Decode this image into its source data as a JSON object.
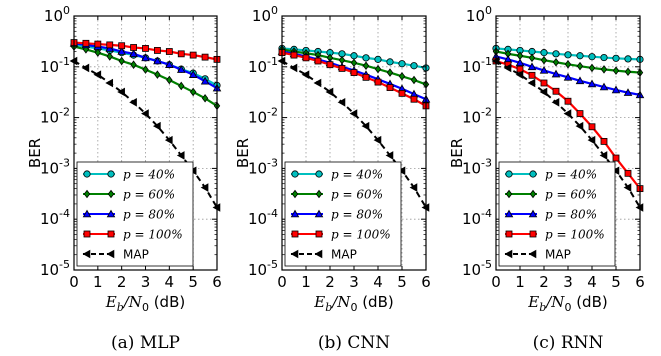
{
  "chart_data": [
    {
      "type": "line",
      "title": "",
      "caption": "(a)  MLP",
      "xlabel": {
        "main": "E",
        "sub1": "b",
        "slash": "/N",
        "sub2": "0",
        "unit": " (dB)"
      },
      "ylabel": "BER",
      "xlim": [
        0,
        6
      ],
      "ylim": [
        1e-05,
        1
      ],
      "yscale": "log",
      "grid": true,
      "legend_position": "lower-left",
      "x_ticks": [
        "0",
        "1",
        "2",
        "3",
        "4",
        "5",
        "6"
      ],
      "y_ticks": [
        {
          "base": "10",
          "exp": "0"
        },
        {
          "base": "10",
          "exp": "-1"
        },
        {
          "base": "10",
          "exp": "-2"
        },
        {
          "base": "10",
          "exp": "-3"
        },
        {
          "base": "10",
          "exp": "-4"
        },
        {
          "base": "10",
          "exp": "-5"
        }
      ],
      "x": [
        0,
        0.5,
        1,
        1.5,
        2,
        2.5,
        3,
        3.5,
        4,
        4.5,
        5,
        5.5,
        6
      ],
      "series": [
        {
          "name": "p = 40%",
          "color": "#00bfbf",
          "marker": "circle",
          "dashed": false,
          "values": [
            0.27,
            0.25,
            0.23,
            0.21,
            0.19,
            0.17,
            0.15,
            0.13,
            0.11,
            0.09,
            0.075,
            0.058,
            0.043
          ]
        },
        {
          "name": "p = 60%",
          "color": "#008000",
          "marker": "diamond",
          "dashed": false,
          "values": [
            0.25,
            0.22,
            0.19,
            0.16,
            0.13,
            0.11,
            0.088,
            0.07,
            0.055,
            0.042,
            0.032,
            0.024,
            0.017
          ]
        },
        {
          "name": "p = 80%",
          "color": "#0000ff",
          "marker": "triangle",
          "dashed": false,
          "values": [
            0.29,
            0.27,
            0.25,
            0.23,
            0.2,
            0.18,
            0.15,
            0.13,
            0.11,
            0.088,
            0.07,
            0.052,
            0.038
          ]
        },
        {
          "name": "p = 100%",
          "color": "#ff0000",
          "marker": "square",
          "dashed": false,
          "values": [
            0.3,
            0.29,
            0.28,
            0.27,
            0.26,
            0.24,
            0.23,
            0.21,
            0.2,
            0.18,
            0.17,
            0.155,
            0.14
          ]
        },
        {
          "name": "MAP",
          "color": "#000000",
          "marker": "left-triangle",
          "dashed": true,
          "values": [
            0.13,
            0.095,
            0.07,
            0.048,
            0.032,
            0.02,
            0.012,
            0.0068,
            0.0036,
            0.0018,
            0.0009,
            0.00042,
            0.00017
          ]
        }
      ]
    },
    {
      "type": "line",
      "title": "",
      "caption": "(b)  CNN",
      "xlabel": {
        "main": "E",
        "sub1": "b",
        "slash": "/N",
        "sub2": "0",
        "unit": " (dB)"
      },
      "ylabel": "BER",
      "xlim": [
        0,
        6
      ],
      "ylim": [
        1e-05,
        1
      ],
      "yscale": "log",
      "grid": true,
      "legend_position": "lower-left",
      "x_ticks": [
        "0",
        "1",
        "2",
        "3",
        "4",
        "5",
        "6"
      ],
      "y_ticks": [
        {
          "base": "10",
          "exp": "0"
        },
        {
          "base": "10",
          "exp": "-1"
        },
        {
          "base": "10",
          "exp": "-2"
        },
        {
          "base": "10",
          "exp": "-3"
        },
        {
          "base": "10",
          "exp": "-4"
        },
        {
          "base": "10",
          "exp": "-5"
        }
      ],
      "x": [
        0,
        0.5,
        1,
        1.5,
        2,
        2.5,
        3,
        3.5,
        4,
        4.5,
        5,
        5.5,
        6
      ],
      "series": [
        {
          "name": "p = 40%",
          "color": "#00bfbf",
          "marker": "circle",
          "dashed": false,
          "values": [
            0.23,
            0.22,
            0.21,
            0.2,
            0.19,
            0.18,
            0.165,
            0.15,
            0.14,
            0.125,
            0.115,
            0.105,
            0.095
          ]
        },
        {
          "name": "p = 60%",
          "color": "#008000",
          "marker": "diamond",
          "dashed": false,
          "values": [
            0.22,
            0.2,
            0.185,
            0.17,
            0.15,
            0.135,
            0.12,
            0.105,
            0.09,
            0.077,
            0.065,
            0.055,
            0.045
          ]
        },
        {
          "name": "p = 80%",
          "color": "#0000ff",
          "marker": "triangle",
          "dashed": false,
          "values": [
            0.2,
            0.18,
            0.16,
            0.14,
            0.12,
            0.1,
            0.085,
            0.07,
            0.057,
            0.046,
            0.037,
            0.029,
            0.023
          ]
        },
        {
          "name": "p = 100%",
          "color": "#ff0000",
          "marker": "square",
          "dashed": false,
          "values": [
            0.19,
            0.17,
            0.15,
            0.13,
            0.11,
            0.093,
            0.077,
            0.062,
            0.05,
            0.039,
            0.03,
            0.023,
            0.017
          ]
        },
        {
          "name": "MAP",
          "color": "#000000",
          "marker": "left-triangle",
          "dashed": true,
          "values": [
            0.13,
            0.095,
            0.07,
            0.048,
            0.032,
            0.02,
            0.012,
            0.0068,
            0.0036,
            0.0018,
            0.0009,
            0.00042,
            0.00017
          ]
        }
      ]
    },
    {
      "type": "line",
      "title": "",
      "caption": "(c)  RNN",
      "xlabel": {
        "main": "E",
        "sub1": "b",
        "slash": "/N",
        "sub2": "0",
        "unit": " (dB)"
      },
      "ylabel": "BER",
      "xlim": [
        0,
        6
      ],
      "ylim": [
        1e-05,
        1
      ],
      "yscale": "log",
      "grid": true,
      "legend_position": "lower-left",
      "x_ticks": [
        "0",
        "1",
        "2",
        "3",
        "4",
        "5",
        "6"
      ],
      "y_ticks": [
        {
          "base": "10",
          "exp": "0"
        },
        {
          "base": "10",
          "exp": "-1"
        },
        {
          "base": "10",
          "exp": "-2"
        },
        {
          "base": "10",
          "exp": "-3"
        },
        {
          "base": "10",
          "exp": "-4"
        },
        {
          "base": "10",
          "exp": "-5"
        }
      ],
      "x": [
        0,
        0.5,
        1,
        1.5,
        2,
        2.5,
        3,
        3.5,
        4,
        4.5,
        5,
        5.5,
        6
      ],
      "series": [
        {
          "name": "p = 40%",
          "color": "#00bfbf",
          "marker": "circle",
          "dashed": false,
          "values": [
            0.23,
            0.22,
            0.21,
            0.2,
            0.19,
            0.18,
            0.172,
            0.165,
            0.158,
            0.152,
            0.147,
            0.143,
            0.14
          ]
        },
        {
          "name": "p = 60%",
          "color": "#008000",
          "marker": "diamond",
          "dashed": false,
          "values": [
            0.2,
            0.18,
            0.165,
            0.15,
            0.135,
            0.123,
            0.112,
            0.103,
            0.095,
            0.089,
            0.084,
            0.08,
            0.077
          ]
        },
        {
          "name": "p = 80%",
          "color": "#0000ff",
          "marker": "triangle",
          "dashed": false,
          "values": [
            0.16,
            0.14,
            0.12,
            0.1,
            0.085,
            0.072,
            0.062,
            0.053,
            0.046,
            0.04,
            0.035,
            0.031,
            0.028
          ]
        },
        {
          "name": "p = 100%",
          "color": "#ff0000",
          "marker": "square",
          "dashed": false,
          "values": [
            0.13,
            0.11,
            0.09,
            0.068,
            0.048,
            0.033,
            0.021,
            0.012,
            0.0066,
            0.0034,
            0.0016,
            0.0008,
            0.0004
          ]
        },
        {
          "name": "MAP",
          "color": "#000000",
          "marker": "left-triangle",
          "dashed": true,
          "values": [
            0.13,
            0.095,
            0.07,
            0.048,
            0.032,
            0.02,
            0.012,
            0.0068,
            0.0036,
            0.0018,
            0.0009,
            0.00042,
            0.00017
          ]
        }
      ]
    }
  ],
  "legend": {
    "p_symbol": "p",
    "entries": [
      {
        "mid": " = ",
        "value": "40%"
      },
      {
        "mid": " = ",
        "value": "60%"
      },
      {
        "mid": " = ",
        "value": "80%"
      },
      {
        "mid": " = ",
        "value": "100%"
      },
      {
        "mid": "",
        "value": "MAP"
      }
    ]
  }
}
